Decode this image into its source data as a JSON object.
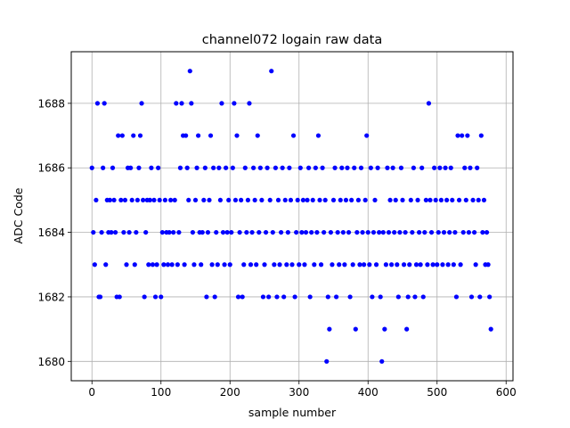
{
  "chart_data": {
    "type": "scatter",
    "title": "channel072 logain raw data",
    "xlabel": "sample number",
    "ylabel": "ADC Code",
    "xlim": [
      -30,
      610
    ],
    "ylim": [
      1679.4,
      1689.6
    ],
    "xticks": [
      0,
      100,
      200,
      300,
      400,
      500,
      600
    ],
    "yticks": [
      1680,
      1682,
      1684,
      1686,
      1688
    ],
    "grid": true,
    "marker_color": "#0000ff",
    "series": [
      {
        "values": [
          [
            0,
            1686
          ],
          [
            2,
            1684
          ],
          [
            4,
            1683
          ],
          [
            6,
            1685
          ],
          [
            8,
            1688
          ],
          [
            10,
            1682
          ],
          [
            12,
            1682
          ],
          [
            14,
            1684
          ],
          [
            16,
            1686
          ],
          [
            18,
            1688
          ],
          [
            20,
            1683
          ],
          [
            22,
            1685
          ],
          [
            24,
            1684
          ],
          [
            26,
            1685
          ],
          [
            28,
            1684
          ],
          [
            30,
            1686
          ],
          [
            32,
            1685
          ],
          [
            34,
            1684
          ],
          [
            36,
            1682
          ],
          [
            38,
            1687
          ],
          [
            40,
            1682
          ],
          [
            42,
            1685
          ],
          [
            44,
            1687
          ],
          [
            46,
            1684
          ],
          [
            48,
            1685
          ],
          [
            50,
            1683
          ],
          [
            52,
            1686
          ],
          [
            54,
            1684
          ],
          [
            56,
            1686
          ],
          [
            58,
            1685
          ],
          [
            60,
            1687
          ],
          [
            62,
            1683
          ],
          [
            64,
            1684
          ],
          [
            66,
            1685
          ],
          [
            68,
            1686
          ],
          [
            70,
            1687
          ],
          [
            72,
            1688
          ],
          [
            74,
            1685
          ],
          [
            76,
            1682
          ],
          [
            78,
            1684
          ],
          [
            80,
            1685
          ],
          [
            82,
            1683
          ],
          [
            84,
            1685
          ],
          [
            86,
            1686
          ],
          [
            88,
            1683
          ],
          [
            90,
            1685
          ],
          [
            92,
            1682
          ],
          [
            94,
            1683
          ],
          [
            96,
            1686
          ],
          [
            98,
            1685
          ],
          [
            100,
            1682
          ],
          [
            102,
            1684
          ],
          [
            104,
            1683
          ],
          [
            106,
            1685
          ],
          [
            108,
            1684
          ],
          [
            110,
            1683
          ],
          [
            112,
            1684
          ],
          [
            114,
            1685
          ],
          [
            116,
            1683
          ],
          [
            118,
            1684
          ],
          [
            120,
            1685
          ],
          [
            122,
            1688
          ],
          [
            124,
            1683
          ],
          [
            126,
            1684
          ],
          [
            128,
            1686
          ],
          [
            130,
            1688
          ],
          [
            132,
            1687
          ],
          [
            134,
            1683
          ],
          [
            136,
            1687
          ],
          [
            138,
            1686
          ],
          [
            140,
            1685
          ],
          [
            142,
            1689
          ],
          [
            144,
            1688
          ],
          [
            146,
            1684
          ],
          [
            148,
            1683
          ],
          [
            150,
            1685
          ],
          [
            152,
            1686
          ],
          [
            154,
            1687
          ],
          [
            156,
            1684
          ],
          [
            158,
            1683
          ],
          [
            160,
            1684
          ],
          [
            162,
            1685
          ],
          [
            164,
            1686
          ],
          [
            166,
            1682
          ],
          [
            168,
            1684
          ],
          [
            170,
            1685
          ],
          [
            172,
            1687
          ],
          [
            174,
            1683
          ],
          [
            176,
            1686
          ],
          [
            178,
            1682
          ],
          [
            180,
            1684
          ],
          [
            182,
            1683
          ],
          [
            184,
            1686
          ],
          [
            186,
            1685
          ],
          [
            188,
            1688
          ],
          [
            190,
            1684
          ],
          [
            192,
            1683
          ],
          [
            194,
            1686
          ],
          [
            196,
            1684
          ],
          [
            198,
            1685
          ],
          [
            200,
            1683
          ],
          [
            202,
            1684
          ],
          [
            204,
            1686
          ],
          [
            206,
            1688
          ],
          [
            208,
            1685
          ],
          [
            210,
            1687
          ],
          [
            212,
            1682
          ],
          [
            214,
            1684
          ],
          [
            216,
            1685
          ],
          [
            218,
            1682
          ],
          [
            220,
            1683
          ],
          [
            222,
            1686
          ],
          [
            224,
            1684
          ],
          [
            226,
            1685
          ],
          [
            228,
            1688
          ],
          [
            230,
            1683
          ],
          [
            232,
            1684
          ],
          [
            234,
            1686
          ],
          [
            236,
            1685
          ],
          [
            238,
            1683
          ],
          [
            240,
            1687
          ],
          [
            242,
            1684
          ],
          [
            244,
            1686
          ],
          [
            246,
            1685
          ],
          [
            248,
            1682
          ],
          [
            250,
            1683
          ],
          [
            252,
            1684
          ],
          [
            254,
            1686
          ],
          [
            256,
            1682
          ],
          [
            258,
            1685
          ],
          [
            260,
            1689
          ],
          [
            262,
            1684
          ],
          [
            264,
            1683
          ],
          [
            266,
            1686
          ],
          [
            268,
            1682
          ],
          [
            270,
            1685
          ],
          [
            272,
            1683
          ],
          [
            274,
            1684
          ],
          [
            276,
            1686
          ],
          [
            278,
            1682
          ],
          [
            280,
            1685
          ],
          [
            282,
            1683
          ],
          [
            284,
            1684
          ],
          [
            286,
            1686
          ],
          [
            288,
            1685
          ],
          [
            290,
            1683
          ],
          [
            292,
            1687
          ],
          [
            294,
            1682
          ],
          [
            296,
            1684
          ],
          [
            298,
            1685
          ],
          [
            300,
            1683
          ],
          [
            302,
            1686
          ],
          [
            304,
            1684
          ],
          [
            306,
            1685
          ],
          [
            308,
            1683
          ],
          [
            310,
            1684
          ],
          [
            312,
            1685
          ],
          [
            314,
            1686
          ],
          [
            316,
            1682
          ],
          [
            318,
            1684
          ],
          [
            320,
            1685
          ],
          [
            322,
            1683
          ],
          [
            324,
            1686
          ],
          [
            326,
            1684
          ],
          [
            328,
            1687
          ],
          [
            330,
            1685
          ],
          [
            332,
            1683
          ],
          [
            334,
            1686
          ],
          [
            336,
            1684
          ],
          [
            338,
            1685
          ],
          [
            340,
            1680
          ],
          [
            342,
            1682
          ],
          [
            344,
            1681
          ],
          [
            346,
            1684
          ],
          [
            348,
            1683
          ],
          [
            350,
            1685
          ],
          [
            352,
            1686
          ],
          [
            354,
            1682
          ],
          [
            356,
            1684
          ],
          [
            358,
            1683
          ],
          [
            360,
            1685
          ],
          [
            362,
            1686
          ],
          [
            364,
            1684
          ],
          [
            366,
            1683
          ],
          [
            368,
            1685
          ],
          [
            370,
            1686
          ],
          [
            372,
            1684
          ],
          [
            374,
            1682
          ],
          [
            376,
            1685
          ],
          [
            378,
            1683
          ],
          [
            380,
            1686
          ],
          [
            382,
            1681
          ],
          [
            384,
            1684
          ],
          [
            386,
            1685
          ],
          [
            388,
            1683
          ],
          [
            390,
            1686
          ],
          [
            392,
            1684
          ],
          [
            394,
            1683
          ],
          [
            396,
            1685
          ],
          [
            398,
            1687
          ],
          [
            400,
            1684
          ],
          [
            402,
            1683
          ],
          [
            404,
            1686
          ],
          [
            406,
            1682
          ],
          [
            408,
            1684
          ],
          [
            410,
            1685
          ],
          [
            412,
            1683
          ],
          [
            414,
            1686
          ],
          [
            416,
            1684
          ],
          [
            418,
            1682
          ],
          [
            420,
            1680
          ],
          [
            422,
            1684
          ],
          [
            424,
            1681
          ],
          [
            426,
            1683
          ],
          [
            428,
            1686
          ],
          [
            430,
            1684
          ],
          [
            432,
            1685
          ],
          [
            434,
            1683
          ],
          [
            436,
            1686
          ],
          [
            438,
            1684
          ],
          [
            440,
            1685
          ],
          [
            442,
            1683
          ],
          [
            444,
            1682
          ],
          [
            446,
            1684
          ],
          [
            448,
            1686
          ],
          [
            450,
            1685
          ],
          [
            452,
            1683
          ],
          [
            454,
            1684
          ],
          [
            456,
            1681
          ],
          [
            458,
            1682
          ],
          [
            460,
            1683
          ],
          [
            462,
            1685
          ],
          [
            464,
            1684
          ],
          [
            466,
            1686
          ],
          [
            468,
            1682
          ],
          [
            470,
            1683
          ],
          [
            472,
            1685
          ],
          [
            474,
            1684
          ],
          [
            476,
            1683
          ],
          [
            478,
            1686
          ],
          [
            480,
            1682
          ],
          [
            482,
            1684
          ],
          [
            484,
            1685
          ],
          [
            486,
            1683
          ],
          [
            488,
            1688
          ],
          [
            490,
            1685
          ],
          [
            492,
            1684
          ],
          [
            494,
            1683
          ],
          [
            496,
            1686
          ],
          [
            498,
            1685
          ],
          [
            500,
            1683
          ],
          [
            502,
            1684
          ],
          [
            504,
            1686
          ],
          [
            506,
            1685
          ],
          [
            508,
            1683
          ],
          [
            510,
            1684
          ],
          [
            512,
            1686
          ],
          [
            514,
            1685
          ],
          [
            516,
            1683
          ],
          [
            518,
            1684
          ],
          [
            520,
            1686
          ],
          [
            522,
            1685
          ],
          [
            524,
            1683
          ],
          [
            526,
            1684
          ],
          [
            528,
            1682
          ],
          [
            530,
            1687
          ],
          [
            532,
            1685
          ],
          [
            534,
            1683
          ],
          [
            536,
            1687
          ],
          [
            538,
            1684
          ],
          [
            540,
            1686
          ],
          [
            542,
            1685
          ],
          [
            544,
            1687
          ],
          [
            546,
            1684
          ],
          [
            548,
            1686
          ],
          [
            550,
            1682
          ],
          [
            552,
            1685
          ],
          [
            554,
            1684
          ],
          [
            556,
            1683
          ],
          [
            558,
            1686
          ],
          [
            560,
            1685
          ],
          [
            562,
            1682
          ],
          [
            564,
            1687
          ],
          [
            566,
            1684
          ],
          [
            568,
            1685
          ],
          [
            570,
            1683
          ],
          [
            572,
            1684
          ],
          [
            574,
            1683
          ],
          [
            576,
            1682
          ],
          [
            578,
            1681
          ]
        ]
      }
    ]
  }
}
